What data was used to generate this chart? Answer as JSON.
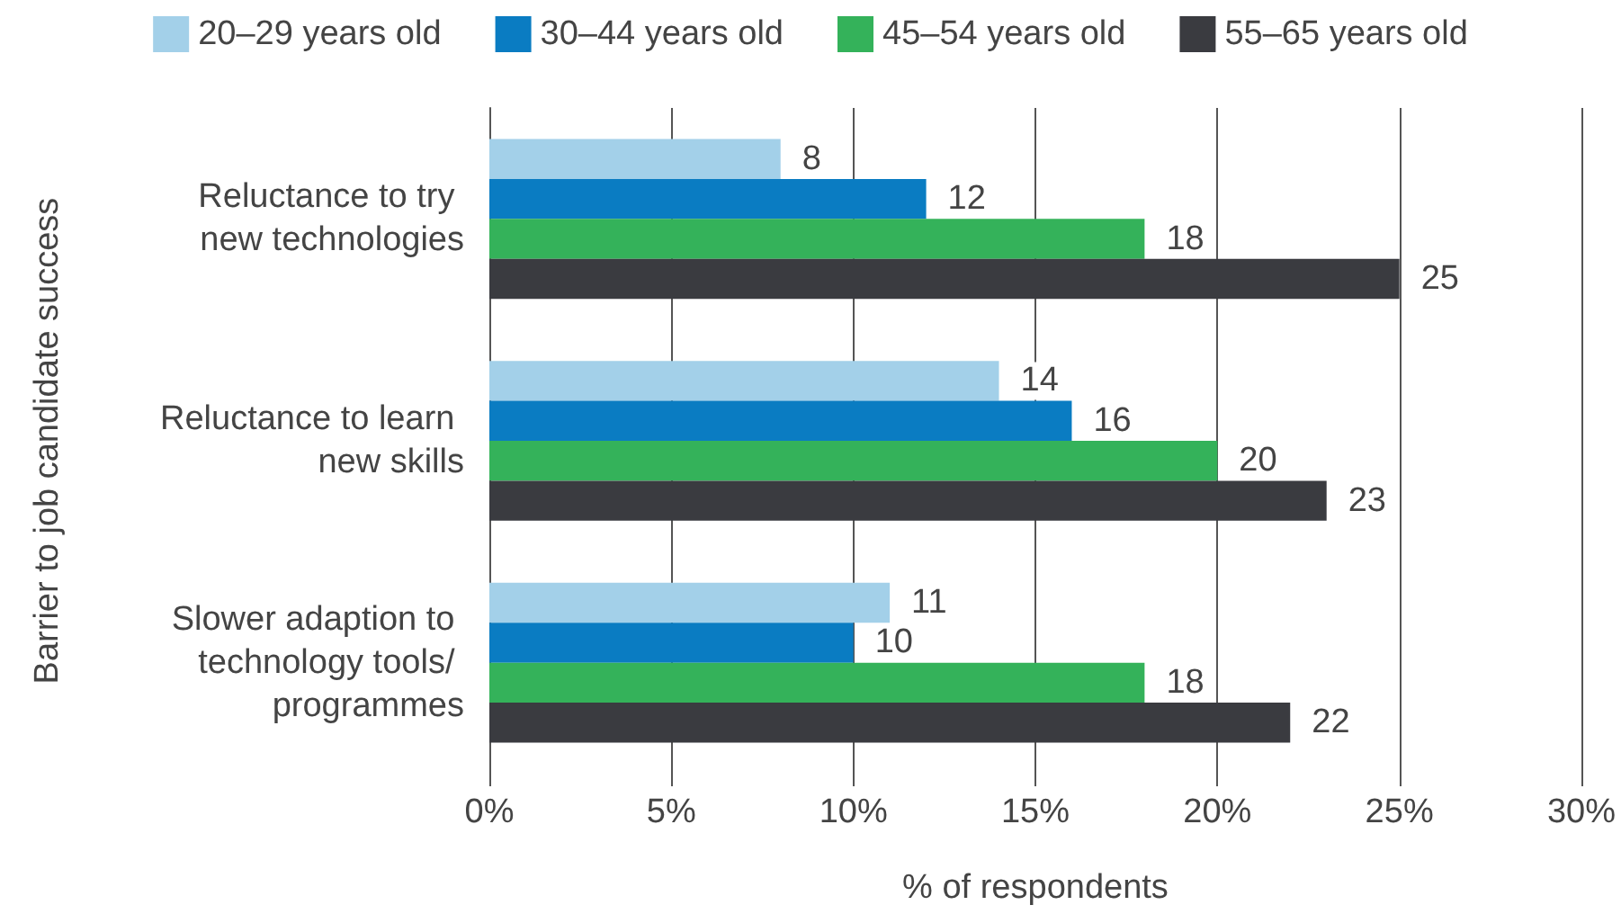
{
  "chart_data": {
    "type": "bar",
    "orientation": "horizontal",
    "xlabel": "% of respondents",
    "ylabel": "Barrier to job candidate success",
    "categories": [
      "Reluctance to try new technologies",
      "Reluctance to learn new skills",
      "Slower adaption to technology tools/ programmes"
    ],
    "series": [
      {
        "name": "20–29 years old",
        "color": "#a3d0e9",
        "values": [
          8,
          14,
          11
        ]
      },
      {
        "name": "30–44 years old",
        "color": "#0a7cc2",
        "values": [
          12,
          16,
          10
        ]
      },
      {
        "name": "45–54 years old",
        "color": "#34b25a",
        "values": [
          18,
          20,
          18
        ]
      },
      {
        "name": "55–65 years old",
        "color": "#3a3b40",
        "values": [
          25,
          23,
          22
        ]
      }
    ],
    "xlim": [
      0,
      30
    ],
    "xticks": [
      {
        "value": 0,
        "label": "0%"
      },
      {
        "value": 5,
        "label": "5%"
      },
      {
        "value": 10,
        "label": "10%"
      },
      {
        "value": 15,
        "label": "15%"
      },
      {
        "value": 20,
        "label": "20%"
      },
      {
        "value": 25,
        "label": "25%"
      },
      {
        "value": 30,
        "label": "30%"
      }
    ],
    "grid": "x",
    "legend": "top",
    "data_labels": true
  }
}
